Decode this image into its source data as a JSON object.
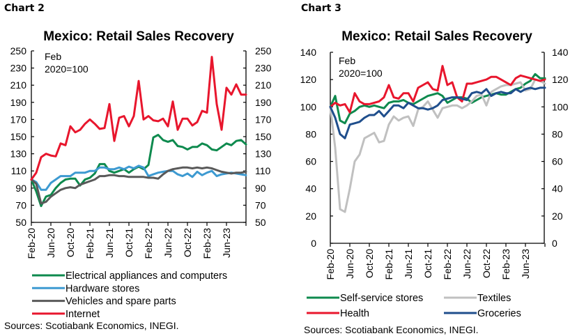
{
  "chart_data": [
    {
      "label": "Chart 2",
      "type": "line",
      "title": "Mexico: Retail Sales Recovery",
      "annotation": [
        "Feb",
        "2020=100"
      ],
      "xlabel": "",
      "ylabel": "",
      "ylim": [
        50,
        250
      ],
      "yticks": [
        50,
        70,
        90,
        110,
        130,
        150,
        170,
        190,
        210,
        230,
        250
      ],
      "secondary_ylim": [
        50,
        250
      ],
      "x_start": "Feb-20",
      "x_tick_labels": [
        "Feb-20",
        "Jun-20",
        "Oct-20",
        "Feb-21",
        "Jun-21",
        "Oct-21",
        "Feb-22",
        "Jun-22",
        "Oct-22",
        "Feb-23",
        "Jun-23"
      ],
      "months": 44,
      "series": [
        {
          "name": "Electrical appliances and computers",
          "color": "#0e8a4e",
          "values": [
            100,
            86,
            69,
            80,
            82,
            90,
            96,
            100,
            101,
            101,
            93,
            100,
            102,
            107,
            118,
            118,
            110,
            108,
            110,
            112,
            108,
            112,
            115,
            112,
            117,
            149,
            152,
            146,
            144,
            146,
            139,
            138,
            135,
            138,
            138,
            142,
            140,
            135,
            134,
            138,
            142,
            140,
            145,
            146,
            141
          ]
        },
        {
          "name": "Hardware stores",
          "color": "#3d9ad1",
          "values": [
            100,
            97,
            88,
            88,
            96,
            100,
            104,
            104,
            104,
            108,
            108,
            108,
            110,
            110,
            114,
            114,
            112,
            112,
            114,
            112,
            115,
            113,
            116,
            114,
            104,
            106,
            108,
            109,
            110,
            110,
            106,
            104,
            107,
            103,
            109,
            105,
            108,
            110,
            104,
            106,
            107,
            108,
            107,
            106,
            105
          ]
        },
        {
          "name": "Vehicles and spare parts",
          "color": "#595959",
          "values": [
            100,
            95,
            72,
            74,
            80,
            84,
            88,
            90,
            91,
            90,
            94,
            96,
            98,
            100,
            104,
            104,
            105,
            105,
            104,
            104,
            103,
            103,
            103,
            103,
            102,
            102,
            101,
            106,
            110,
            112,
            113,
            114,
            114,
            113,
            114,
            113,
            114,
            113,
            111,
            109,
            108,
            107,
            108,
            108,
            109
          ]
        },
        {
          "name": "Internet",
          "color": "#e8162d",
          "values": [
            100,
            108,
            126,
            130,
            128,
            127,
            142,
            140,
            162,
            155,
            158,
            165,
            170,
            165,
            159,
            160,
            188,
            145,
            172,
            174,
            162,
            174,
            215,
            170,
            174,
            169,
            168,
            171,
            162,
            191,
            158,
            171,
            171,
            163,
            167,
            180,
            178,
            243,
            188,
            158,
            207,
            199,
            211,
            199,
            199
          ]
        }
      ],
      "legend": [
        "Electrical appliances and computers",
        "Hardware stores",
        "Vehicles and spare parts",
        "Internet"
      ],
      "legend_position": "bottom",
      "source": "Sources: Scotiabank Economics, INEGI."
    },
    {
      "label": "Chart 3",
      "type": "line",
      "title": "Mexico: Retail Sales Recovery",
      "annotation": [
        "Feb",
        "2020=100"
      ],
      "xlabel": "",
      "ylabel": "",
      "ylim": [
        0,
        140
      ],
      "yticks": [
        0,
        20,
        40,
        60,
        80,
        100,
        120,
        140
      ],
      "secondary_ylim": [
        0,
        140
      ],
      "x_start": "Feb-20",
      "x_tick_labels": [
        "Feb-20",
        "Jun-20",
        "Oct-20",
        "Feb-21",
        "Jun-21",
        "Oct-21",
        "Feb-22",
        "Jun-22",
        "Oct-22",
        "Feb-23",
        "Jun-23"
      ],
      "months": 44,
      "series": [
        {
          "name": "Self-service stores",
          "color": "#0e8a4e",
          "values": [
            100,
            108,
            90,
            88,
            95,
            97,
            100,
            101,
            100,
            101,
            100,
            99,
            103,
            104,
            104,
            105,
            103,
            102,
            104,
            106,
            108,
            109,
            110,
            108,
            103,
            105,
            107,
            107,
            106,
            103,
            105,
            107,
            108,
            109,
            110,
            109,
            109,
            111,
            113,
            114,
            117,
            119,
            124,
            121,
            121
          ]
        },
        {
          "name": "Textiles",
          "color": "#c0c0c0",
          "values": [
            100,
            70,
            25,
            23,
            40,
            60,
            65,
            77,
            79,
            81,
            74,
            75,
            87,
            93,
            90,
            92,
            93,
            86,
            98,
            100,
            104,
            98,
            92,
            99,
            100,
            101,
            101,
            99,
            101,
            104,
            108,
            109,
            101,
            111,
            113,
            115,
            116,
            116,
            117,
            118,
            112,
            113,
            120,
            119,
            117
          ]
        },
        {
          "name": "Health",
          "color": "#e8162d",
          "values": [
            100,
            103,
            101,
            102,
            96,
            110,
            104,
            102,
            102,
            103,
            104,
            107,
            116,
            107,
            106,
            110,
            110,
            104,
            114,
            116,
            118,
            113,
            112,
            130,
            116,
            118,
            107,
            104,
            117,
            117,
            118,
            119,
            120,
            122,
            122,
            120,
            118,
            116,
            121,
            123,
            122,
            121,
            120,
            119,
            120
          ]
        },
        {
          "name": "Groceries",
          "color": "#1f4e8c",
          "values": [
            100,
            92,
            80,
            77,
            87,
            88,
            89,
            92,
            94,
            94,
            97,
            93,
            97,
            101,
            101,
            99,
            103,
            101,
            99,
            99,
            98,
            99,
            101,
            105,
            106,
            107,
            107,
            106,
            105,
            110,
            111,
            110,
            113,
            108,
            110,
            111,
            110,
            110,
            113,
            111,
            113,
            114,
            113,
            114,
            114
          ]
        }
      ],
      "legend": [
        "Self-service stores",
        "Textiles",
        "Health",
        "Groceries"
      ],
      "legend_position": "bottom",
      "source": "Sources: Scotiabank Economics, INEGI."
    }
  ]
}
